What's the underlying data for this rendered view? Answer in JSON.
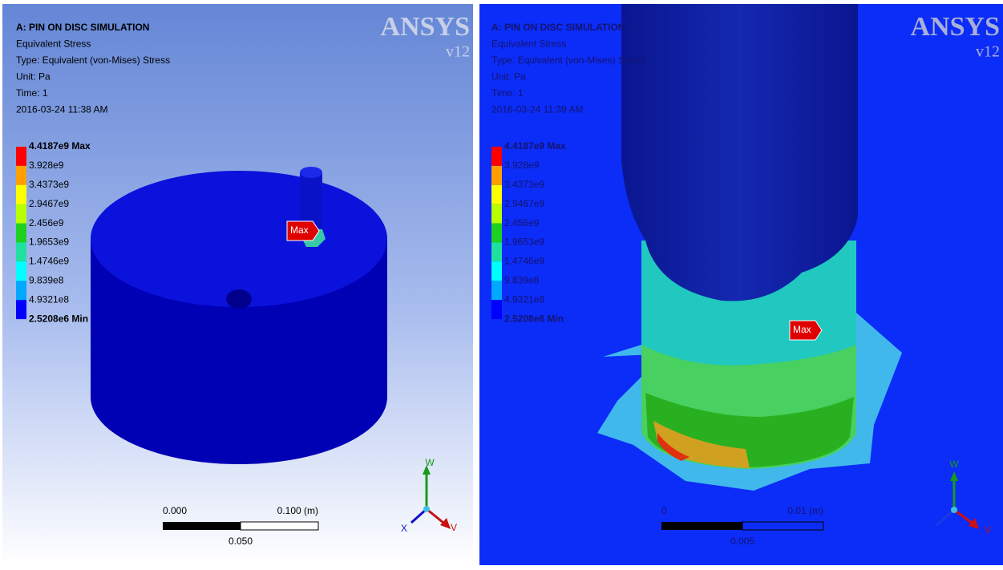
{
  "panels": [
    {
      "header": [
        "A: PIN ON DISC SIMULATION",
        "Equivalent Stress",
        "Type: Equivalent (von-Mises) Stress",
        "Unit: Pa",
        "Time: 1",
        "2016-03-24 11:38 AM"
      ],
      "logo": {
        "brand": "ANSYS",
        "version": "v12"
      },
      "legend": [
        "4.4187e9 Max",
        "3.928e9",
        "3.4373e9",
        "2.9467e9",
        "2.456e9",
        "1.9653e9",
        "1.4746e9",
        "9.839e8",
        "4.9321e8",
        "2.5208e6 Min"
      ],
      "probe": "Max",
      "scale": {
        "left": "0.000",
        "right": "0.100 (m)",
        "middle": "0.050"
      },
      "axes": [
        "W",
        "X",
        "V"
      ]
    },
    {
      "header": [
        "A: PIN ON DISC SIMULATION",
        "Equivalent Stress",
        "Type: Equivalent (von-Mises) Stress",
        "Unit: Pa",
        "Time: 1",
        "2016-03-24 11:39 AM"
      ],
      "logo": {
        "brand": "ANSYS",
        "version": "v12"
      },
      "legend": [
        "4.4187e9 Max",
        "3.928e9",
        "3.4373e9",
        "2.9467e9",
        "2.456e9",
        "1.9653e9",
        "1.4746e9",
        "9.839e8",
        "4.9321e8",
        "2.5208e6 Min"
      ],
      "probe": "Max",
      "scale": {
        "left": "0",
        "right": "0.01 (m)",
        "middle": "0.005"
      },
      "axes": [
        "W",
        "V"
      ]
    }
  ]
}
